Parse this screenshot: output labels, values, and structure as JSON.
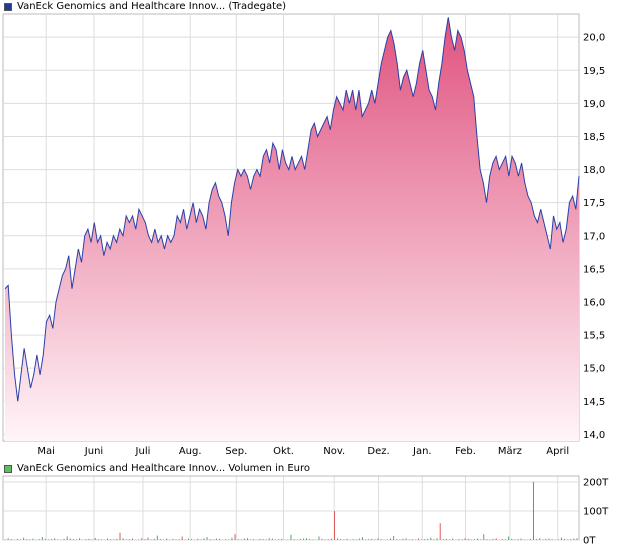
{
  "price_legend": {
    "label": "VanEck Genomics and Healthcare Innov... (Tradegate)",
    "color": "#1f3b9c"
  },
  "volume_legend": {
    "label": "VanEck Genomics and Healthcare Innov... Volumen in Euro",
    "color": "#5fbf5f"
  },
  "chart_data": [
    {
      "type": "area",
      "ylim": [
        13.9,
        20.35
      ],
      "y_ticks": [
        "14,0",
        "14,5",
        "15,0",
        "15,5",
        "16,0",
        "16,5",
        "17,0",
        "17,5",
        "18,0",
        "18,5",
        "19,0",
        "19,5",
        "20,0"
      ],
      "y_tick_values": [
        14.0,
        14.5,
        15.0,
        15.5,
        16.0,
        16.5,
        17.0,
        17.5,
        18.0,
        18.5,
        19.0,
        19.5,
        20.0
      ],
      "x_ticks": [
        "Mai",
        "Juni",
        "Juli",
        "Aug.",
        "Sep.",
        "Okt.",
        "Nov.",
        "Dez.",
        "Jan.",
        "Feb.",
        "März",
        "April"
      ],
      "line_color": "#2a3fa8",
      "fill_top_color": "#e0527f",
      "fill_bottom_color": "#fff5f8",
      "series": [
        {
          "values": [
            16.2,
            16.25,
            15.5,
            14.9,
            14.5,
            14.9,
            15.3,
            15.0,
            14.7,
            14.9,
            15.2,
            14.9,
            15.2,
            15.7,
            15.8,
            15.6,
            16.0,
            16.2,
            16.4,
            16.5,
            16.7,
            16.2,
            16.5,
            16.8,
            16.6,
            17.0,
            17.1,
            16.9,
            17.2,
            16.9,
            17.0,
            16.7,
            16.9,
            16.8,
            17.0,
            16.9,
            17.1,
            17.0,
            17.3,
            17.2,
            17.3,
            17.1,
            17.4,
            17.3,
            17.2,
            17.0,
            16.9,
            17.1,
            16.9,
            17.0,
            16.8,
            17.0,
            16.9,
            17.0,
            17.3,
            17.2,
            17.4,
            17.1,
            17.3,
            17.5,
            17.2,
            17.4,
            17.3,
            17.1,
            17.5,
            17.7,
            17.8,
            17.6,
            17.5,
            17.3,
            17.0,
            17.5,
            17.8,
            18.0,
            17.9,
            18.0,
            17.9,
            17.7,
            17.9,
            18.0,
            17.9,
            18.2,
            18.3,
            18.1,
            18.4,
            18.3,
            18.0,
            18.3,
            18.1,
            18.0,
            18.2,
            18.0,
            18.1,
            18.2,
            18.0,
            18.3,
            18.6,
            18.7,
            18.5,
            18.6,
            18.7,
            18.8,
            18.6,
            18.9,
            19.1,
            19.0,
            18.9,
            19.2,
            19.0,
            19.2,
            18.9,
            19.2,
            18.8,
            18.9,
            19.0,
            19.2,
            19.0,
            19.3,
            19.6,
            19.8,
            20.0,
            20.1,
            19.9,
            19.6,
            19.2,
            19.4,
            19.5,
            19.3,
            19.1,
            19.3,
            19.6,
            19.8,
            19.5,
            19.2,
            19.1,
            18.9,
            19.3,
            19.6,
            20.0,
            20.3,
            20.0,
            19.8,
            20.1,
            20.0,
            19.8,
            19.5,
            19.3,
            19.1,
            18.5,
            18.0,
            17.8,
            17.5,
            17.9,
            18.1,
            18.2,
            18.0,
            18.1,
            18.2,
            17.9,
            18.2,
            18.1,
            17.9,
            18.1,
            17.8,
            17.6,
            17.5,
            17.3,
            17.2,
            17.4,
            17.2,
            17.0,
            16.8,
            17.3,
            17.1,
            17.2,
            16.9,
            17.1,
            17.5,
            17.6,
            17.4,
            17.9
          ]
        }
      ]
    },
    {
      "type": "bar",
      "ylim": [
        0,
        200
      ],
      "y_ticks": [
        "0T",
        "100T",
        "200T"
      ],
      "y_tick_values": [
        0,
        100,
        200
      ],
      "bar_color_up": "#4caf50",
      "bar_color_down": "#e05a5a",
      "series": [
        {
          "values": [
            2,
            6,
            3,
            1,
            4,
            2,
            8,
            3,
            2,
            5,
            1,
            3,
            10,
            4,
            2,
            3,
            6,
            2,
            1,
            4,
            12,
            5,
            3,
            2,
            6,
            1,
            3,
            4,
            2,
            7,
            3,
            2,
            1,
            5,
            3,
            2,
            4,
            25,
            6,
            2,
            3,
            5,
            1,
            2,
            6,
            3,
            8,
            2,
            4,
            15,
            3,
            2,
            5,
            1,
            4,
            2,
            3,
            12,
            2,
            5,
            3,
            1,
            4,
            2,
            6,
            10,
            3,
            2,
            5,
            4,
            1,
            3,
            2,
            8,
            20,
            3,
            2,
            5,
            6,
            2,
            3,
            1,
            4,
            3,
            2,
            6,
            5,
            2,
            3,
            4,
            1,
            2,
            18,
            3,
            2,
            4,
            5,
            6,
            3,
            2,
            1,
            12,
            4,
            2,
            3,
            5,
            100,
            6,
            3,
            2,
            4,
            1,
            3,
            2,
            5,
            10,
            2,
            3,
            4,
            2,
            6,
            3,
            1,
            2,
            5,
            14,
            3,
            2,
            4,
            6,
            2,
            3,
            1,
            5,
            2,
            3,
            4,
            8,
            2,
            6,
            58,
            3,
            4,
            2,
            5,
            1,
            3,
            2,
            6,
            4,
            2,
            3,
            5,
            2,
            20,
            3,
            2,
            4,
            6,
            1,
            3,
            2,
            12,
            4,
            2,
            3,
            5,
            2,
            1,
            4,
            210,
            3,
            6,
            2,
            4,
            5,
            3,
            1,
            2,
            8,
            4,
            2,
            3,
            5,
            6
          ]
        }
      ]
    }
  ]
}
